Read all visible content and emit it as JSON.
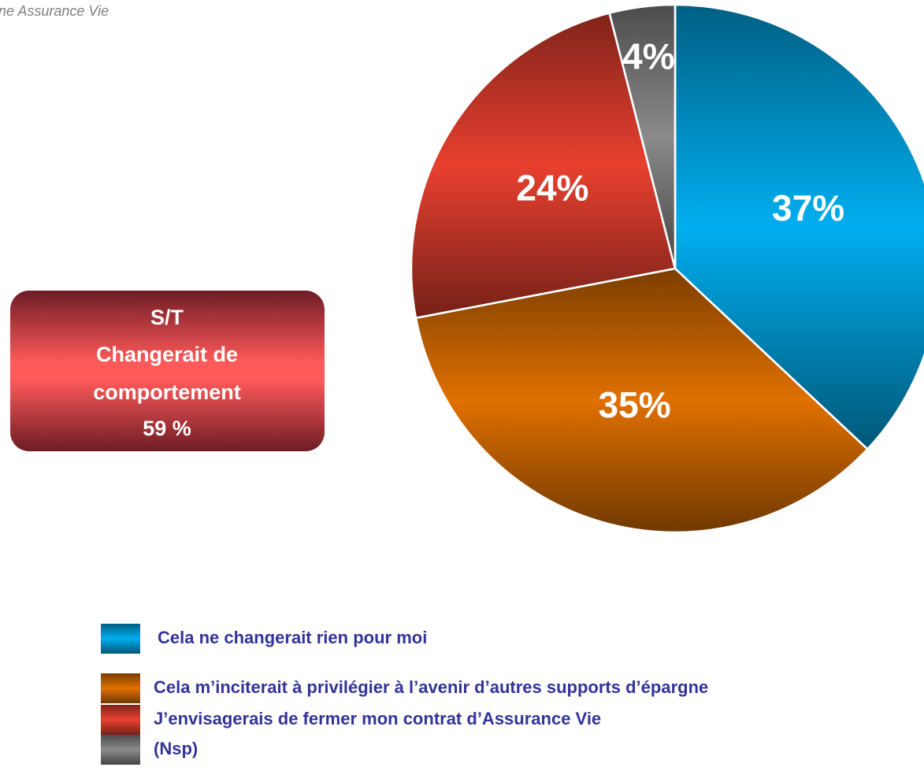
{
  "header": {
    "text": "ne Assurance Vie"
  },
  "chart_data": {
    "type": "pie",
    "categories": [
      "Cela ne changerait rien pour moi",
      "Cela m’inciterait à privilégier à l’avenir d’autres supports d’épargne",
      "J’envisagerais de fermer mon contrat d’Assurance Vie",
      "(Nsp)"
    ],
    "values": [
      37,
      35,
      24,
      4
    ],
    "value_labels": [
      "37%",
      "35%",
      "24%",
      "4%"
    ],
    "colors": [
      "#00aeef",
      "#e07000",
      "#e8402f",
      "#8a8a8a"
    ],
    "annotation": {
      "lines": [
        "S/T",
        "Changerait de",
        "comportement",
        "59 %"
      ]
    }
  }
}
